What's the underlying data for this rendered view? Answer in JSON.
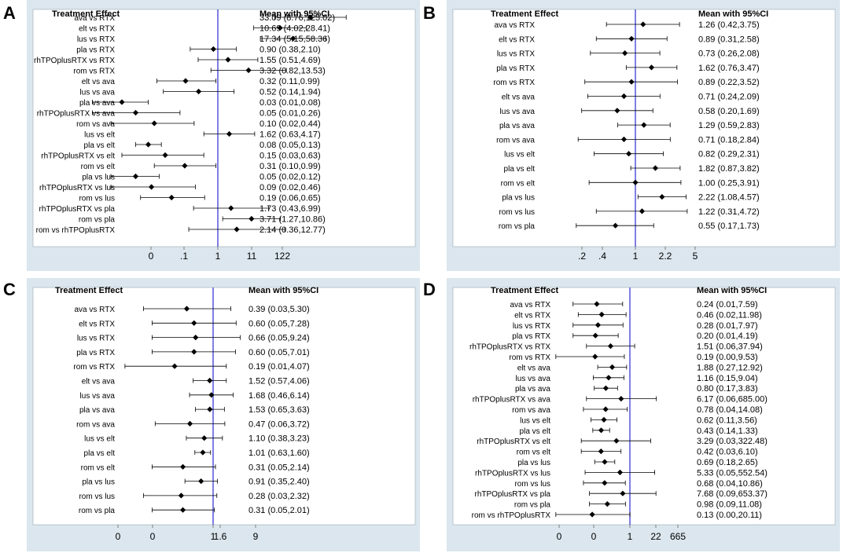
{
  "chart_data": [
    {
      "panel_label": "A",
      "type": "forest",
      "header_left": "Treatment Effect",
      "header_right": "Mean with 95%CI",
      "ticks": [
        "0",
        ".1",
        "1",
        "11",
        "122"
      ],
      "reference": 1,
      "rows": [
        {
          "label": "ava vs RTX",
          "est": 33.09,
          "lo": 8.76,
          "hi": 125.02,
          "text": "33.09 (8.76,125.02)"
        },
        {
          "label": "elt vs RTX",
          "est": 10.69,
          "lo": 4.02,
          "hi": 28.41,
          "text": "10.69 (4.02,28.41)"
        },
        {
          "label": "lus vs RTX",
          "est": 17.34,
          "lo": 5.15,
          "hi": 58.36,
          "text": "17.34 (5.15,58.36)"
        },
        {
          "label": "pla vs RTX",
          "est": 0.9,
          "lo": 0.38,
          "hi": 2.1,
          "text": "0.90 (0.38,2.10)"
        },
        {
          "label": "rhTPOplusRTX vs RTX",
          "est": 1.55,
          "lo": 0.51,
          "hi": 4.69,
          "text": "1.55 (0.51,4.69)"
        },
        {
          "label": "rom vs RTX",
          "est": 3.32,
          "lo": 0.82,
          "hi": 13.53,
          "text": "3.32 (0.82,13.53)"
        },
        {
          "label": "elt vs ava",
          "est": 0.32,
          "lo": 0.11,
          "hi": 0.99,
          "text": "0.32 (0.11,0.99)"
        },
        {
          "label": "lus vs ava",
          "est": 0.52,
          "lo": 0.14,
          "hi": 1.94,
          "text": "0.52 (0.14,1.94)"
        },
        {
          "label": "pla vs ava",
          "est": 0.03,
          "lo": 0.01,
          "hi": 0.08,
          "text": "0.03 (0.01,0.08)"
        },
        {
          "label": "rhTPOplusRTX vs ava",
          "est": 0.05,
          "lo": 0.01,
          "hi": 0.26,
          "text": "0.05 (0.01,0.26)"
        },
        {
          "label": "rom vs ava",
          "est": 0.1,
          "lo": 0.02,
          "hi": 0.44,
          "text": "0.10 (0.02,0.44)"
        },
        {
          "label": "lus vs elt",
          "est": 1.62,
          "lo": 0.63,
          "hi": 4.17,
          "text": "1.62 (0.63,4.17)"
        },
        {
          "label": "pla vs elt",
          "est": 0.08,
          "lo": 0.05,
          "hi": 0.13,
          "text": "0.08 (0.05,0.13)"
        },
        {
          "label": "rhTPOplusRTX vs elt",
          "est": 0.15,
          "lo": 0.03,
          "hi": 0.63,
          "text": "0.15 (0.03,0.63)"
        },
        {
          "label": "rom vs elt",
          "est": 0.31,
          "lo": 0.1,
          "hi": 0.99,
          "text": "0.31 (0.10,0.99)"
        },
        {
          "label": "pla vs lus",
          "est": 0.05,
          "lo": 0.02,
          "hi": 0.12,
          "text": "0.05 (0.02,0.12)"
        },
        {
          "label": "rhTPOplusRTX vs lus",
          "est": 0.09,
          "lo": 0.02,
          "hi": 0.46,
          "text": "0.09 (0.02,0.46)"
        },
        {
          "label": "rom vs lus",
          "est": 0.19,
          "lo": 0.06,
          "hi": 0.65,
          "text": "0.19 (0.06,0.65)"
        },
        {
          "label": "rhTPOplusRTX vs pla",
          "est": 1.73,
          "lo": 0.43,
          "hi": 6.99,
          "text": "1.73 (0.43,6.99)"
        },
        {
          "label": "rom vs pla",
          "est": 3.71,
          "lo": 1.27,
          "hi": 10.86,
          "text": "3.71 (1.27,10.86)"
        },
        {
          "label": "rom vs rhTPOplusRTX",
          "est": 2.14,
          "lo": 0.36,
          "hi": 12.77,
          "text": "2.14 (0.36,12.77)"
        }
      ]
    },
    {
      "panel_label": "B",
      "type": "forest",
      "header_left": "Treatment Effect",
      "header_right": "Mean with 95%CI",
      "ticks": [
        ".2",
        ".4",
        "1",
        "2.2",
        "5"
      ],
      "reference": 1,
      "rows": [
        {
          "label": "ava vs RTX",
          "est": 1.26,
          "lo": 0.42,
          "hi": 3.75,
          "text": "1.26 (0.42,3.75)"
        },
        {
          "label": "elt vs RTX",
          "est": 0.89,
          "lo": 0.31,
          "hi": 2.58,
          "text": "0.89 (0.31,2.58)"
        },
        {
          "label": "lus vs RTX",
          "est": 0.73,
          "lo": 0.26,
          "hi": 2.08,
          "text": "0.73 (0.26,2.08)"
        },
        {
          "label": "pla vs RTX",
          "est": 1.62,
          "lo": 0.76,
          "hi": 3.47,
          "text": "1.62 (0.76,3.47)"
        },
        {
          "label": "rom vs RTX",
          "est": 0.89,
          "lo": 0.22,
          "hi": 3.52,
          "text": "0.89 (0.22,3.52)"
        },
        {
          "label": "elt vs ava",
          "est": 0.71,
          "lo": 0.24,
          "hi": 2.09,
          "text": "0.71 (0.24,2.09)"
        },
        {
          "label": "lus vs ava",
          "est": 0.58,
          "lo": 0.2,
          "hi": 1.69,
          "text": "0.58 (0.20,1.69)"
        },
        {
          "label": "pla vs ava",
          "est": 1.29,
          "lo": 0.59,
          "hi": 2.83,
          "text": "1.29 (0.59,2.83)"
        },
        {
          "label": "rom vs ava",
          "est": 0.71,
          "lo": 0.18,
          "hi": 2.84,
          "text": "0.71 (0.18,2.84)"
        },
        {
          "label": "lus vs elt",
          "est": 0.82,
          "lo": 0.29,
          "hi": 2.31,
          "text": "0.82 (0.29,2.31)"
        },
        {
          "label": "pla vs elt",
          "est": 1.82,
          "lo": 0.87,
          "hi": 3.82,
          "text": "1.82 (0.87,3.82)"
        },
        {
          "label": "rom vs elt",
          "est": 1.0,
          "lo": 0.25,
          "hi": 3.91,
          "text": "1.00 (0.25,3.91)"
        },
        {
          "label": "pla vs lus",
          "est": 2.22,
          "lo": 1.08,
          "hi": 4.57,
          "text": "2.22 (1.08,4.57)"
        },
        {
          "label": "rom vs lus",
          "est": 1.22,
          "lo": 0.31,
          "hi": 4.72,
          "text": "1.22 (0.31,4.72)"
        },
        {
          "label": "rom vs pla",
          "est": 0.55,
          "lo": 0.17,
          "hi": 1.73,
          "text": "0.55 (0.17,1.73)"
        }
      ]
    },
    {
      "panel_label": "C",
      "type": "forest",
      "header_left": "Treatment Effect",
      "header_right": "Mean with 95%CI",
      "ticks": [
        "0",
        "0",
        "1",
        "1.6",
        "9"
      ],
      "reference": 1,
      "rows": [
        {
          "label": "ava vs RTX",
          "est": 0.39,
          "lo": 0.03,
          "hi": 5.3,
          "text": "0.39 (0.03,5.30)"
        },
        {
          "label": "elt vs RTX",
          "est": 0.6,
          "lo": 0.05,
          "hi": 7.28,
          "text": "0.60 (0.05,7.28)"
        },
        {
          "label": "lus vs RTX",
          "est": 0.66,
          "lo": 0.05,
          "hi": 9.24,
          "text": "0.66 (0.05,9.24)"
        },
        {
          "label": "pla vs RTX",
          "est": 0.6,
          "lo": 0.05,
          "hi": 7.01,
          "text": "0.60 (0.05,7.01)"
        },
        {
          "label": "rom vs RTX",
          "est": 0.19,
          "lo": 0.01,
          "hi": 4.07,
          "text": "0.19 (0.01,4.07)"
        },
        {
          "label": "elt vs ava",
          "est": 1.52,
          "lo": 0.57,
          "hi": 4.06,
          "text": "1.52 (0.57,4.06)"
        },
        {
          "label": "lus vs ava",
          "est": 1.68,
          "lo": 0.46,
          "hi": 6.14,
          "text": "1.68 (0.46,6.14)"
        },
        {
          "label": "pla vs ava",
          "est": 1.53,
          "lo": 0.65,
          "hi": 3.63,
          "text": "1.53 (0.65,3.63)"
        },
        {
          "label": "rom vs ava",
          "est": 0.47,
          "lo": 0.06,
          "hi": 3.72,
          "text": "0.47 (0.06,3.72)"
        },
        {
          "label": "lus vs elt",
          "est": 1.1,
          "lo": 0.38,
          "hi": 3.23,
          "text": "1.10 (0.38,3.23)"
        },
        {
          "label": "pla vs elt",
          "est": 1.01,
          "lo": 0.63,
          "hi": 1.6,
          "text": "1.01 (0.63,1.60)"
        },
        {
          "label": "rom vs elt",
          "est": 0.31,
          "lo": 0.05,
          "hi": 2.14,
          "text": "0.31 (0.05,2.14)"
        },
        {
          "label": "pla vs lus",
          "est": 0.91,
          "lo": 0.35,
          "hi": 2.4,
          "text": "0.91 (0.35,2.40)"
        },
        {
          "label": "rom vs lus",
          "est": 0.28,
          "lo": 0.03,
          "hi": 2.32,
          "text": "0.28 (0.03,2.32)"
        },
        {
          "label": "rom vs pla",
          "est": 0.31,
          "lo": 0.05,
          "hi": 2.01,
          "text": "0.31 (0.05,2.01)"
        }
      ]
    },
    {
      "panel_label": "D",
      "type": "forest",
      "header_left": "Treatment Effect",
      "header_right": "Mean with 95%CI",
      "ticks": [
        "0",
        "0",
        "1",
        "22",
        "665"
      ],
      "reference": 1,
      "rows": [
        {
          "label": "ava vs RTX",
          "est": 0.24,
          "lo": 0.01,
          "hi": 7.59,
          "text": "0.24 (0.01,7.59)"
        },
        {
          "label": "elt vs RTX",
          "est": 0.46,
          "lo": 0.02,
          "hi": 11.98,
          "text": "0.46 (0.02,11.98)"
        },
        {
          "label": "lus vs RTX",
          "est": 0.28,
          "lo": 0.01,
          "hi": 7.97,
          "text": "0.28 (0.01,7.97)"
        },
        {
          "label": "pla vs RTX",
          "est": 0.2,
          "lo": 0.01,
          "hi": 4.19,
          "text": "0.20 (0.01,4.19)"
        },
        {
          "label": "rhTPOplusRTX vs RTX",
          "est": 1.51,
          "lo": 0.06,
          "hi": 37.94,
          "text": "1.51 (0.06,37.94)"
        },
        {
          "label": "rom vs RTX",
          "est": 0.19,
          "lo": 0.0,
          "hi": 9.53,
          "text": "0.19 (0.00,9.53)"
        },
        {
          "label": "elt vs ava",
          "est": 1.88,
          "lo": 0.27,
          "hi": 12.92,
          "text": "1.88 (0.27,12.92)"
        },
        {
          "label": "lus vs ava",
          "est": 1.16,
          "lo": 0.15,
          "hi": 9.04,
          "text": "1.16 (0.15,9.04)"
        },
        {
          "label": "pla vs ava",
          "est": 0.8,
          "lo": 0.17,
          "hi": 3.83,
          "text": "0.80 (0.17,3.83)"
        },
        {
          "label": "rhTPOplusRTX vs ava",
          "est": 6.17,
          "lo": 0.06,
          "hi": 685.0,
          "text": "6.17 (0.06,685.00)"
        },
        {
          "label": "rom vs ava",
          "est": 0.78,
          "lo": 0.04,
          "hi": 14.08,
          "text": "0.78 (0.04,14.08)"
        },
        {
          "label": "lus vs elt",
          "est": 0.62,
          "lo": 0.11,
          "hi": 3.56,
          "text": "0.62 (0.11,3.56)"
        },
        {
          "label": "pla vs elt",
          "est": 0.43,
          "lo": 0.14,
          "hi": 1.33,
          "text": "0.43 (0.14,1.33)"
        },
        {
          "label": "rhTPOplusRTX vs elt",
          "est": 3.29,
          "lo": 0.03,
          "hi": 322.48,
          "text": "3.29 (0.03,322.48)"
        },
        {
          "label": "rom vs elt",
          "est": 0.42,
          "lo": 0.03,
          "hi": 6.1,
          "text": "0.42 (0.03,6.10)"
        },
        {
          "label": "pla vs lus",
          "est": 0.69,
          "lo": 0.18,
          "hi": 2.65,
          "text": "0.69 (0.18,2.65)"
        },
        {
          "label": "rhTPOplusRTX vs lus",
          "est": 5.33,
          "lo": 0.05,
          "hi": 552.54,
          "text": "5.33 (0.05,552.54)"
        },
        {
          "label": "rom vs lus",
          "est": 0.68,
          "lo": 0.04,
          "hi": 10.86,
          "text": "0.68 (0.04,10.86)"
        },
        {
          "label": "rhTPOplusRTX vs pla",
          "est": 7.68,
          "lo": 0.09,
          "hi": 653.37,
          "text": "7.68 (0.09,653.37)"
        },
        {
          "label": "rom vs pla",
          "est": 0.98,
          "lo": 0.09,
          "hi": 11.08,
          "text": "0.98 (0.09,11.08)"
        },
        {
          "label": "rom vs rhTPOplusRTX",
          "est": 0.13,
          "lo": 0.0,
          "hi": 20.11,
          "text": "0.13 (0.00,20.11)"
        }
      ]
    }
  ],
  "colors": {
    "panel_bg": "#dbe6ee",
    "plot_bg": "#ffffff",
    "reference_line": "#3a3ad6",
    "ink": "#000000"
  }
}
